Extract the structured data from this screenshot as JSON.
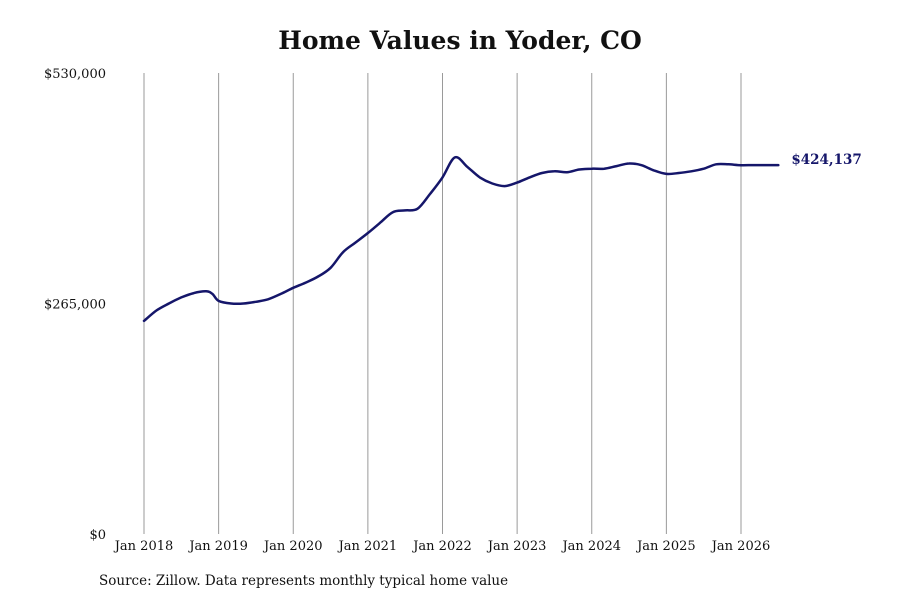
{
  "chart_data": {
    "type": "line",
    "title": "Home Values in Yoder, CO",
    "source": "Source: Zillow. Data represents monthly typical home value",
    "x_ticks": [
      "Jan 2018",
      "Jan 2019",
      "Jan 2020",
      "Jan 2021",
      "Jan 2022",
      "Jan 2023",
      "Jan 2024",
      "Jan 2025",
      "Jan 2026"
    ],
    "y_ticks": [
      {
        "value": 0,
        "label": "$0"
      },
      {
        "value": 265000,
        "label": "$265,000"
      },
      {
        "value": 530000,
        "label": "$530,000"
      }
    ],
    "ylim": [
      0,
      530000
    ],
    "xlim": [
      "2018-01",
      "2026-12"
    ],
    "grid": "vertical",
    "line_color": "#15166a",
    "end_label": "$424,137",
    "series": [
      {
        "x": [
          "2018-01",
          "2018-03",
          "2018-05",
          "2018-07",
          "2018-09",
          "2018-11",
          "2018-12",
          "2019-01",
          "2019-03",
          "2019-05",
          "2019-07",
          "2019-09",
          "2019-11",
          "2020-01",
          "2020-03",
          "2020-05",
          "2020-07",
          "2020-09",
          "2020-11",
          "2021-01",
          "2021-03",
          "2021-05",
          "2021-07",
          "2021-09",
          "2021-11",
          "2022-01",
          "2022-03",
          "2022-05",
          "2022-07",
          "2022-09",
          "2022-11",
          "2023-01",
          "2023-03",
          "2023-05",
          "2023-07",
          "2023-09",
          "2023-11",
          "2024-01",
          "2024-03",
          "2024-05",
          "2024-07",
          "2024-09",
          "2024-11",
          "2025-01",
          "2025-03",
          "2025-05",
          "2025-07",
          "2025-09",
          "2025-11",
          "2026-01",
          "2026-03",
          "2026-05",
          "2026-07"
        ],
        "values": [
          245000,
          257000,
          265000,
          272000,
          277000,
          279000,
          276000,
          268000,
          265000,
          265000,
          267000,
          270000,
          276000,
          283000,
          289000,
          296000,
          306000,
          324000,
          335000,
          346000,
          358000,
          370000,
          372000,
          374000,
          391000,
          410000,
          433000,
          422000,
          410000,
          403000,
          400000,
          404000,
          410000,
          415000,
          417000,
          416000,
          419000,
          420000,
          420000,
          423000,
          426000,
          424000,
          418000,
          414000,
          415000,
          417000,
          420000,
          425000,
          425000,
          424000,
          424137,
          424137,
          424137
        ]
      }
    ]
  }
}
